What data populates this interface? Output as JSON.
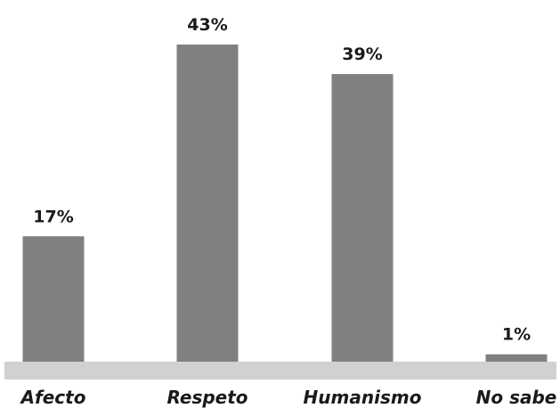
{
  "chart_data": {
    "type": "bar",
    "categories": [
      "Afecto",
      "Respeto",
      "Humanismo",
      "No sabe"
    ],
    "values": [
      17,
      43,
      39,
      1
    ],
    "value_labels": [
      "17%",
      "43%",
      "39%",
      "1%"
    ],
    "unit": "%",
    "title": "",
    "xlabel": "",
    "ylabel": "",
    "ylim": [
      0,
      43
    ],
    "grid": false,
    "legend": "none",
    "colors": {
      "bar": "#808083",
      "floor": "#d1d1d3",
      "text": "#1a1a1a"
    }
  }
}
